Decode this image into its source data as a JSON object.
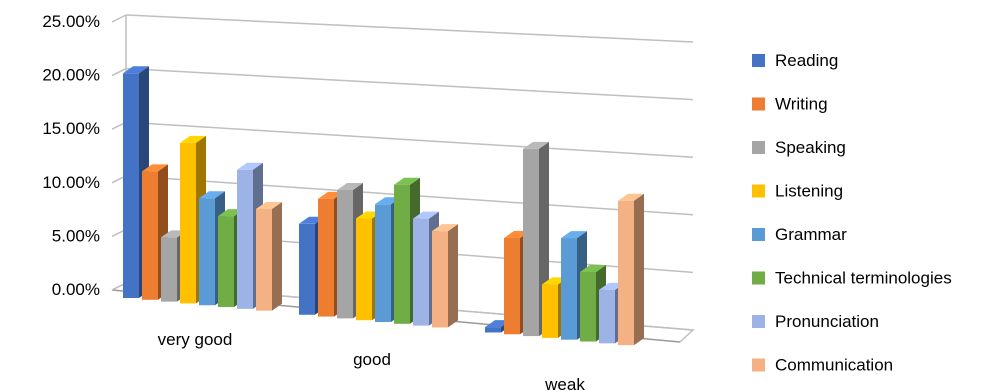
{
  "chart_data": {
    "type": "bar",
    "title": "",
    "xlabel": "",
    "ylabel": "",
    "ylim": [
      0,
      25
    ],
    "yticks": [
      "0.00%",
      "5.00%",
      "10.00%",
      "15.00%",
      "20.00%",
      "25.00%"
    ],
    "categories": [
      "very good",
      "good",
      "weak"
    ],
    "grid": true,
    "legend_position": "right",
    "series": [
      {
        "name": "Reading",
        "color": "#4472C4",
        "values": [
          21.0,
          8.5,
          0.5
        ]
      },
      {
        "name": "Writing",
        "color": "#ED7D31",
        "values": [
          12.0,
          11.0,
          9.0
        ]
      },
      {
        "name": "Speaking",
        "color": "#A5A5A5",
        "values": [
          6.0,
          12.0,
          17.5
        ]
      },
      {
        "name": "Listening",
        "color": "#FFC000",
        "values": [
          15.0,
          9.5,
          5.0
        ]
      },
      {
        "name": "Grammar",
        "color": "#5B9BD5",
        "values": [
          10.0,
          11.0,
          9.5
        ]
      },
      {
        "name": "Technical terminologies",
        "color": "#70AD47",
        "values": [
          8.5,
          13.0,
          6.5
        ]
      },
      {
        "name": "Pronunciation",
        "color": "#9DB3E6",
        "values": [
          13.0,
          10.0,
          5.0
        ]
      },
      {
        "name": "Communication",
        "color": "#F4B183",
        "values": [
          9.5,
          9.0,
          13.5
        ]
      }
    ]
  }
}
